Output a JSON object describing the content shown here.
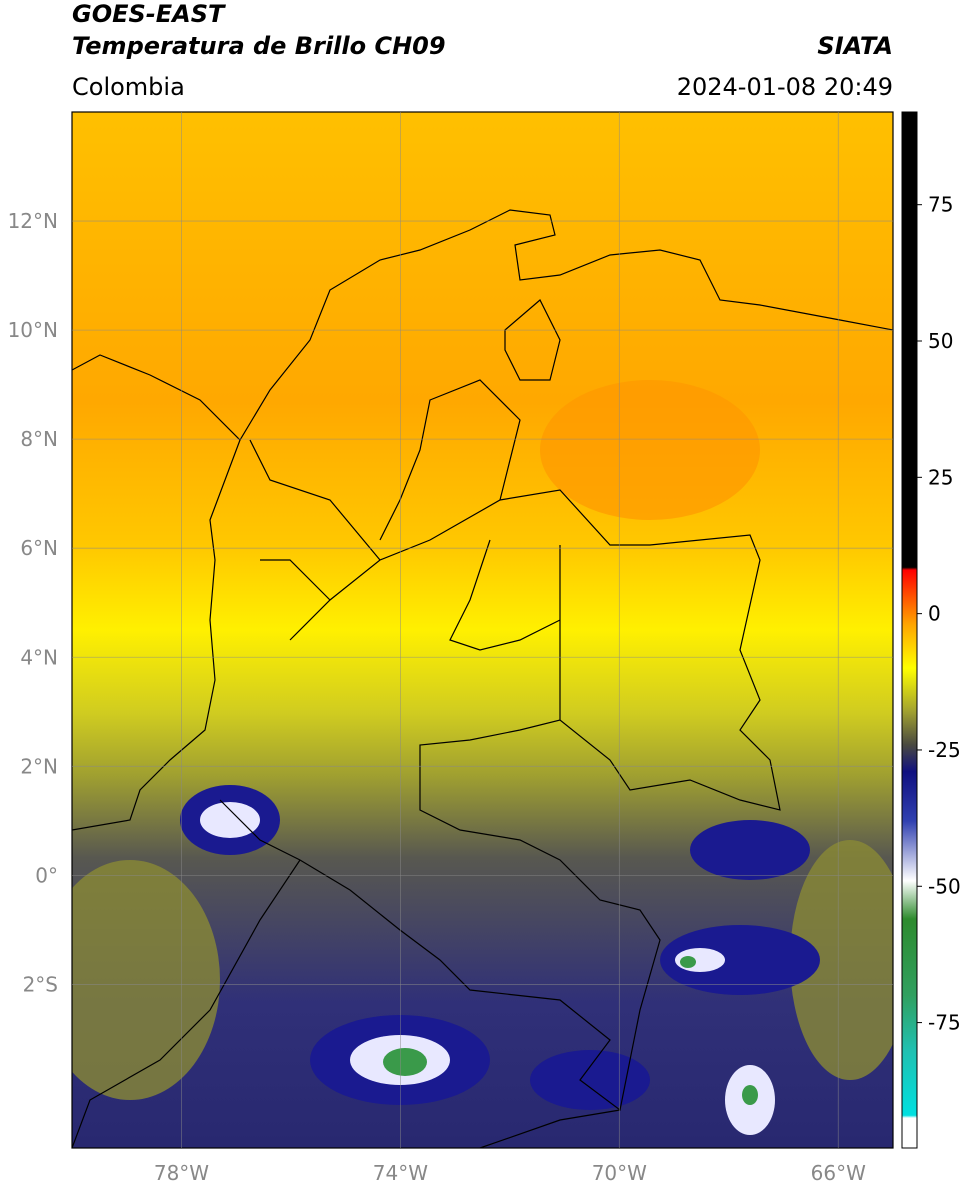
{
  "header": {
    "satellite": "GOES-EAST",
    "product": "Temperatura de Brillo CH09",
    "source": "SIATA",
    "region": "Colombia",
    "datetime": "2024-01-08 20:49"
  },
  "chart_data": {
    "type": "map",
    "xlim": [
      -80,
      -65
    ],
    "ylim": [
      -5,
      14
    ],
    "xticks": [
      {
        "value": -78,
        "label": "78°W"
      },
      {
        "value": -74,
        "label": "74°W"
      },
      {
        "value": -70,
        "label": "70°W"
      },
      {
        "value": -66,
        "label": "66°W"
      }
    ],
    "yticks": [
      {
        "value": 12,
        "label": "12°N"
      },
      {
        "value": 10,
        "label": "10°N"
      },
      {
        "value": 8,
        "label": "8°N"
      },
      {
        "value": 6,
        "label": "6°N"
      },
      {
        "value": 4,
        "label": "4°N"
      },
      {
        "value": 2,
        "label": "2°N"
      },
      {
        "value": 0,
        "label": "0°"
      },
      {
        "value": -2,
        "label": "2°S"
      }
    ],
    "grid": true,
    "colorbar": {
      "lim": [
        -98,
        92
      ],
      "ticks": [
        75,
        50,
        25,
        0,
        -25,
        -50,
        -75
      ],
      "stops": [
        {
          "value": -98,
          "color": "#ffffff"
        },
        {
          "value": -92.5,
          "color": "#ffffff"
        },
        {
          "value": -92,
          "color": "#00e0e0"
        },
        {
          "value": -80,
          "color": "#20c0b0"
        },
        {
          "value": -70,
          "color": "#30a060"
        },
        {
          "value": -56,
          "color": "#2e8b2e"
        },
        {
          "value": -49,
          "color": "#ffffff"
        },
        {
          "value": -38,
          "color": "#3040b0"
        },
        {
          "value": -29,
          "color": "#101080"
        },
        {
          "value": -24,
          "color": "#4a4a40"
        },
        {
          "value": -18,
          "color": "#a0a030"
        },
        {
          "value": -10,
          "color": "#ffff00"
        },
        {
          "value": -2,
          "color": "#ffa500"
        },
        {
          "value": 3,
          "color": "#ff5500"
        },
        {
          "value": 8,
          "color": "#ff0000"
        },
        {
          "value": 8.5,
          "color": "#000000"
        },
        {
          "value": 92,
          "color": "#000000"
        }
      ]
    }
  }
}
